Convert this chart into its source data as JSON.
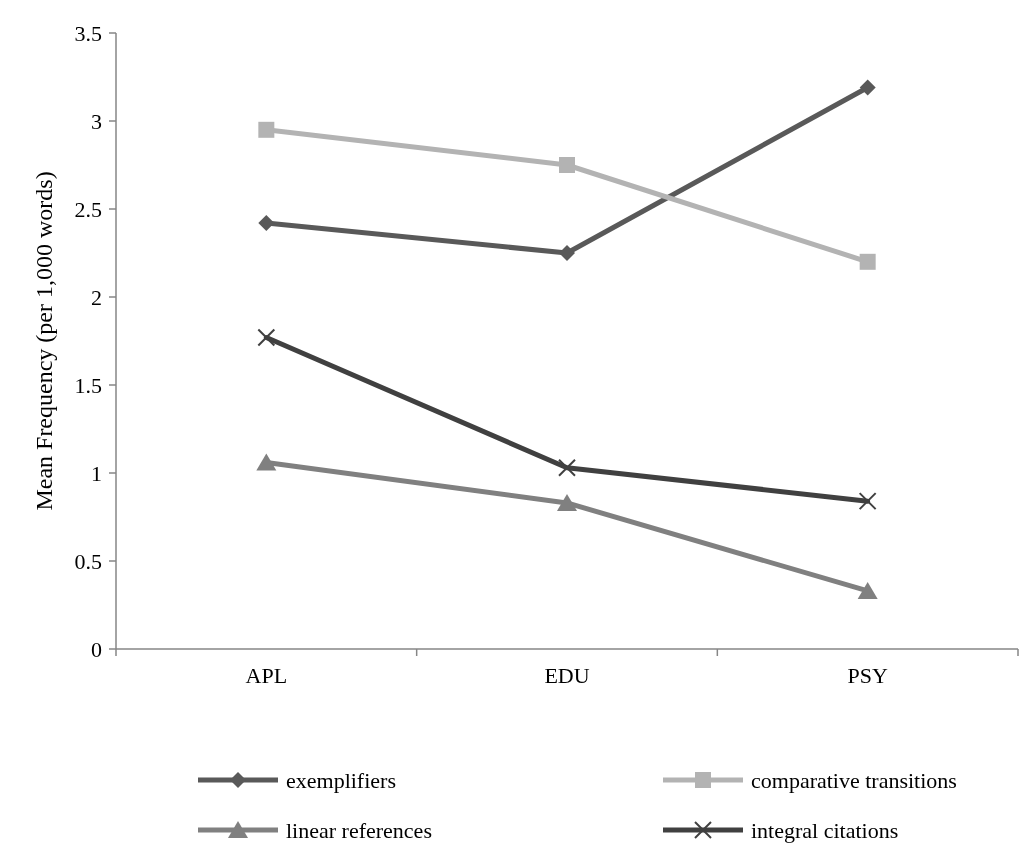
{
  "chart_data": {
    "type": "line",
    "ylabel": "Mean Frequency  (per 1,000 words)",
    "categories": [
      "APL",
      "EDU",
      "PSY"
    ],
    "ylim": [
      0,
      3.5
    ],
    "yticks": [
      0,
      0.5,
      1,
      1.5,
      2,
      2.5,
      3,
      3.5
    ],
    "grid": false,
    "legend": "bottom",
    "series": [
      {
        "name": "exemplifiers",
        "color": "#595959",
        "marker": "diamond",
        "values": [
          2.42,
          2.25,
          3.19
        ]
      },
      {
        "name": "comparative transitions",
        "color": "#b3b3b3",
        "marker": "square",
        "values": [
          2.95,
          2.75,
          2.2
        ]
      },
      {
        "name": "linear references",
        "color": "#808080",
        "marker": "triangle",
        "values": [
          1.06,
          0.83,
          0.33
        ]
      },
      {
        "name": "integral citations",
        "color": "#404040",
        "marker": "cross",
        "values": [
          1.77,
          1.03,
          0.84
        ]
      }
    ]
  }
}
